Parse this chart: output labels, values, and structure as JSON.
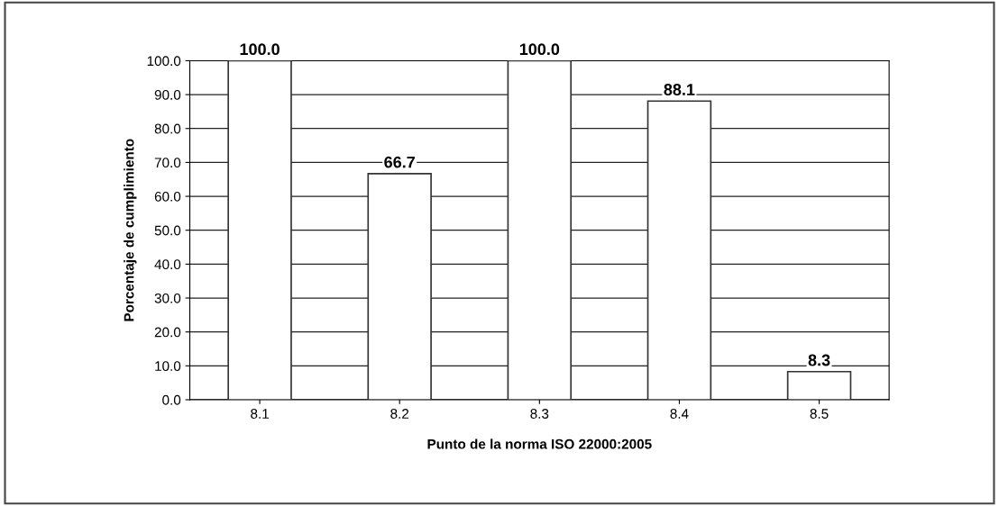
{
  "chart_data": {
    "type": "bar",
    "xlabel": "Punto de la norma ISO 22000:2005",
    "ylabel": "Porcentaje de cumplimiento",
    "categories": [
      "8.1",
      "8.2",
      "8.3",
      "8.4",
      "8.5"
    ],
    "values": [
      100.0,
      66.7,
      100.0,
      88.1,
      8.3
    ],
    "value_labels": [
      "100.0",
      "66.7",
      "100.0",
      "88.1",
      "8.3"
    ],
    "color": "#ffffff",
    "ylim": [
      0,
      100
    ],
    "yticks": [
      {
        "value": 0,
        "label": "0.0"
      },
      {
        "value": 10,
        "label": "10.0"
      },
      {
        "value": 20,
        "label": "20.0"
      },
      {
        "value": 30,
        "label": "30.0"
      },
      {
        "value": 40,
        "label": "40.0"
      },
      {
        "value": 50,
        "label": "50.0"
      },
      {
        "value": 60,
        "label": "60.0"
      },
      {
        "value": 70,
        "label": "70.0"
      },
      {
        "value": 80,
        "label": "80.0"
      },
      {
        "value": 90,
        "label": "90.0"
      },
      {
        "value": 100,
        "label": "100.0"
      }
    ],
    "grid": "y"
  }
}
